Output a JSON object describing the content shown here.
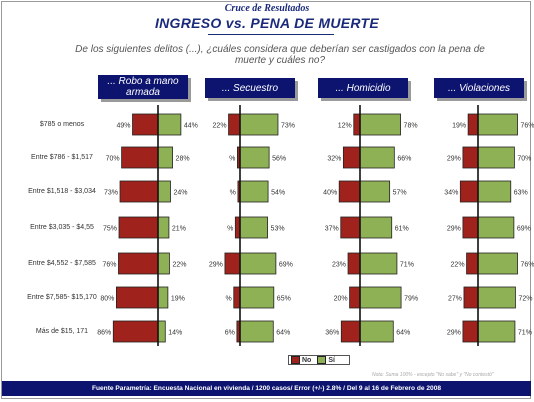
{
  "header": {
    "kicker": "Cruce de Resultados",
    "title": "INGRESO vs. PENA DE MUERTE",
    "question": "De los siguientes delitos (...), ¿cuáles considera que deberían ser castigados con la pena de muerte y cuáles no?"
  },
  "colors": {
    "no": "#a0221c",
    "si": "#8fb155",
    "header_bg": "#0d1470"
  },
  "legend": {
    "no_label": "No",
    "si_label": "Sí"
  },
  "note": "Nota: Suma 100% - excepto \"No sabe\" y \"No contestó\"",
  "footer": "Fuente Parametría: Encuesta Nacional en vivienda / 1200 casos/ Error (+/-) 2.8% / Del 9 al 16 de Febrero de 2008",
  "chart_data": {
    "type": "bar",
    "orientation": "horizontal-diverging",
    "categories": [
      "$785 o menos",
      "Entre $786 - $1,517",
      "Entre $1,518 - $3,034",
      "Entre $3,035 - $4,55",
      "Entre $4,552 - $7,585",
      "Entre $7,585- $15,170",
      "Más de $15, 171"
    ],
    "panels": [
      {
        "label": "... Robo a mano armada",
        "no": [
          49,
          70,
          73,
          75,
          76,
          80,
          86
        ],
        "si": [
          44,
          28,
          24,
          21,
          22,
          19,
          14
        ],
        "no_text": [
          "49%",
          "70%",
          "73%",
          "75%",
          "76%",
          "80%",
          "86%"
        ],
        "si_text": [
          "44%",
          "28%",
          "24%",
          "21%",
          "22%",
          "19%",
          "14%"
        ]
      },
      {
        "label": "... Secuestro",
        "no": [
          22,
          5,
          4,
          9,
          29,
          12,
          6
        ],
        "si": [
          73,
          56,
          54,
          53,
          69,
          65,
          64
        ],
        "no_text": [
          "22%",
          "%",
          "%",
          "%",
          "29%",
          "%",
          "6%"
        ],
        "si_text": [
          "73%",
          "56%",
          "54%",
          "53%",
          "69%",
          "65%",
          "64%"
        ]
      },
      {
        "label": "... Homicidio",
        "no": [
          12,
          32,
          40,
          37,
          23,
          20,
          36
        ],
        "si": [
          78,
          66,
          57,
          61,
          71,
          79,
          64
        ],
        "no_text": [
          "12%",
          "32%",
          "40%",
          "37%",
          "23%",
          "20%",
          "36%"
        ],
        "si_text": [
          "78%",
          "66%",
          "57%",
          "61%",
          "71%",
          "79%",
          "64%"
        ]
      },
      {
        "label": "... Violaciones",
        "no": [
          19,
          29,
          34,
          29,
          22,
          27,
          29
        ],
        "si": [
          76,
          70,
          63,
          69,
          76,
          72,
          71
        ],
        "no_text": [
          "19%",
          "29%",
          "34%",
          "29%",
          "22%",
          "27%",
          "29%"
        ],
        "si_text": [
          "76%",
          "70%",
          "63%",
          "69%",
          "76%",
          "72%",
          "71%"
        ]
      }
    ],
    "series": [
      {
        "name": "No"
      },
      {
        "name": "Sí"
      }
    ]
  }
}
